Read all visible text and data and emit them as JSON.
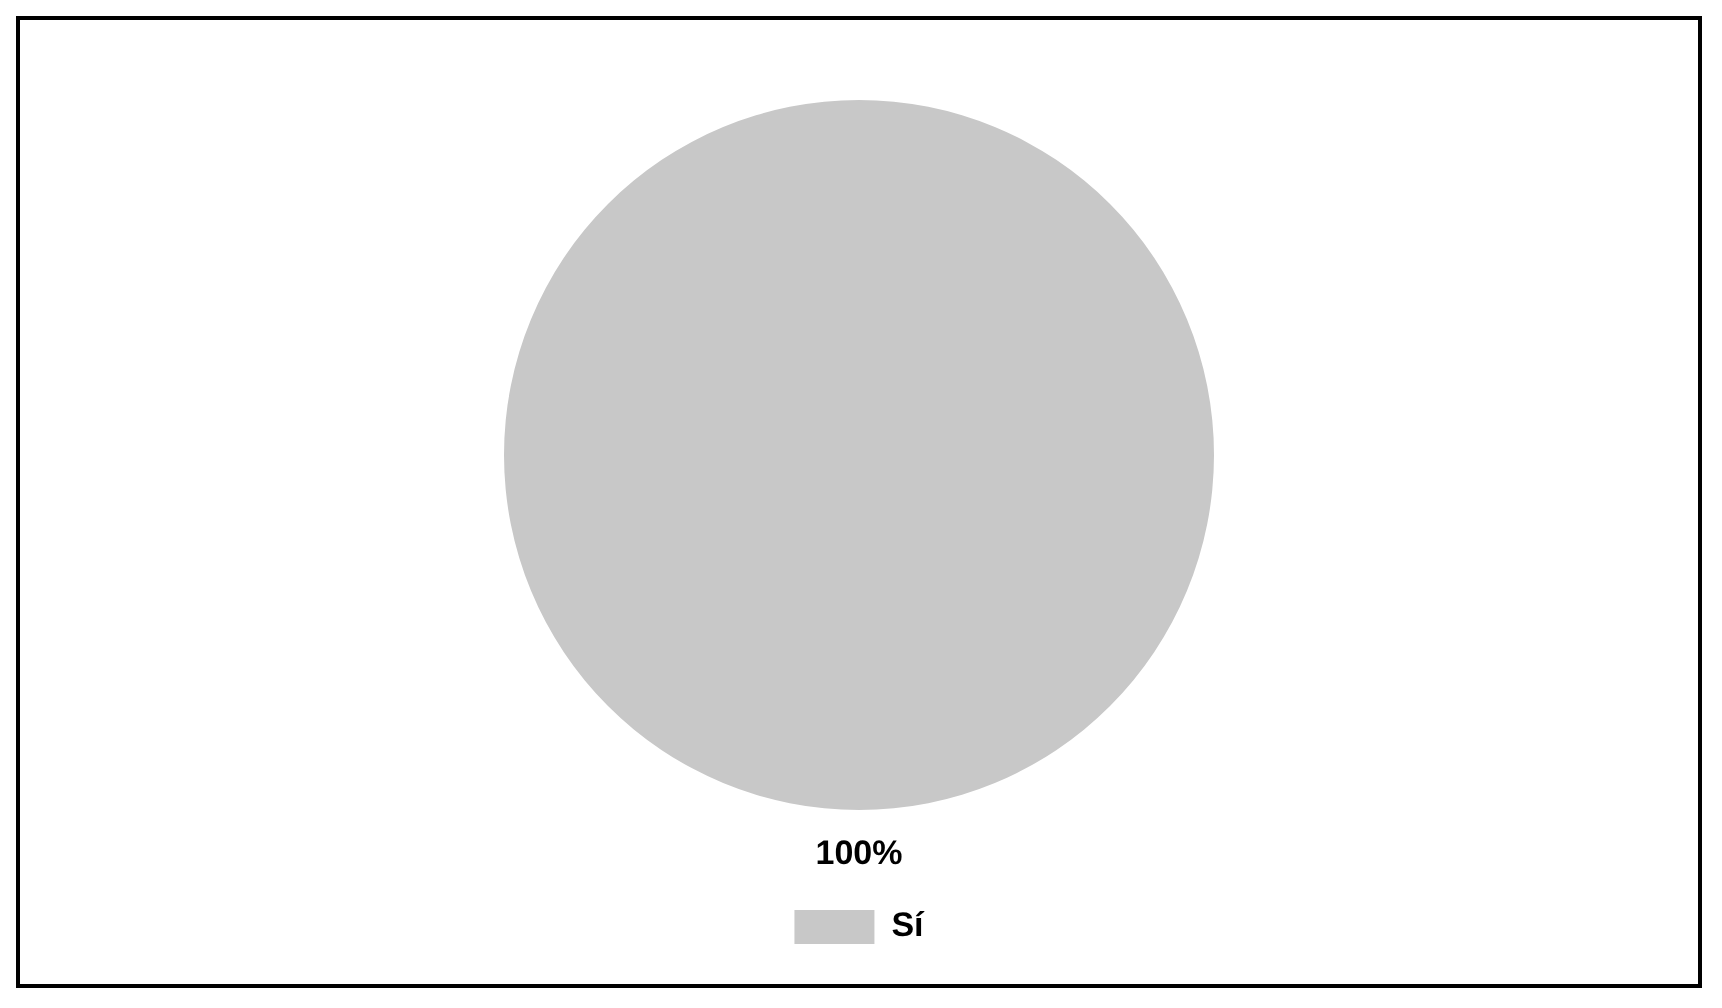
{
  "chart_data": {
    "type": "pie",
    "categories": [
      "Sí"
    ],
    "values": [
      100
    ],
    "colors": [
      "#c8c8c8"
    ],
    "value_labels": [
      "100%"
    ],
    "legend": "bottom"
  }
}
